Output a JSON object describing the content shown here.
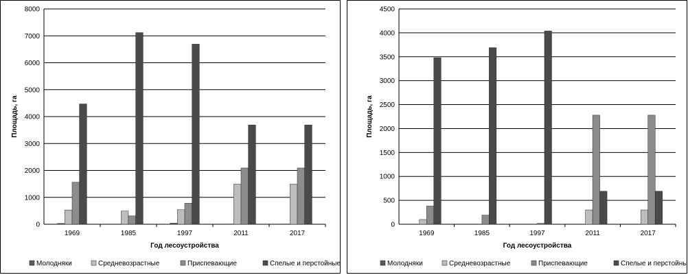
{
  "chart_data": [
    {
      "type": "bar",
      "categories": [
        "1969",
        "1985",
        "1997",
        "2011",
        "2017"
      ],
      "xlabel": "Год лесоустройства",
      "ylabel": "Площадь, га",
      "ylim": [
        0,
        8000
      ],
      "yticks": [
        0,
        1000,
        2000,
        3000,
        4000,
        5000,
        6000,
        7000,
        8000
      ],
      "grid": true,
      "legend_position": "bottom",
      "series": [
        {
          "name": "Молодняки",
          "color": "#5a5a5a",
          "values": [
            30,
            0,
            40,
            10,
            10
          ]
        },
        {
          "name": "Средневозрастные",
          "color": "#bdbdbd",
          "values": [
            530,
            490,
            540,
            1490,
            1490
          ]
        },
        {
          "name": "Приспевающие",
          "color": "#8c8c8c",
          "values": [
            1560,
            310,
            780,
            2090,
            2090
          ]
        },
        {
          "name": "Спелые и перстойные",
          "color": "#4a4a4a",
          "values": [
            4470,
            7120,
            6690,
            3690,
            3690
          ]
        }
      ]
    },
    {
      "type": "bar",
      "categories": [
        "1969",
        "1985",
        "1997",
        "2011",
        "2017"
      ],
      "xlabel": "Год лесоустройства",
      "ylabel": "Площадь, га",
      "ylim": [
        0,
        4500
      ],
      "yticks": [
        0,
        500,
        1000,
        1500,
        2000,
        2500,
        3000,
        3500,
        4000,
        4500
      ],
      "grid": true,
      "legend_position": "bottom",
      "series": [
        {
          "name": "Молодняки",
          "color": "#5a5a5a",
          "values": [
            0,
            0,
            0,
            0,
            0
          ]
        },
        {
          "name": "Средневозрастные",
          "color": "#bdbdbd",
          "values": [
            100,
            0,
            0,
            300,
            300
          ]
        },
        {
          "name": "Приспевающие",
          "color": "#8c8c8c",
          "values": [
            380,
            190,
            20,
            2280,
            2280
          ]
        },
        {
          "name": "Спелые и перстойные",
          "color": "#4a4a4a",
          "values": [
            3480,
            3690,
            4040,
            690,
            690
          ]
        }
      ]
    }
  ]
}
